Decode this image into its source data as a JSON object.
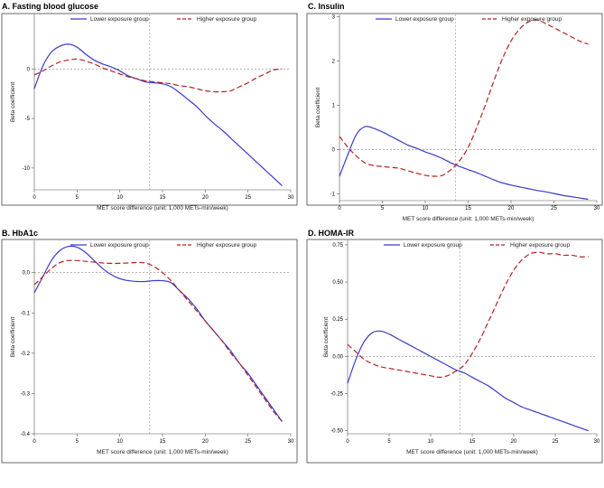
{
  "chart_data": [
    {
      "id": "A",
      "type": "line",
      "title": "A. Fasting blood glucose",
      "xlabel": "MET score difference (unit: 1,000 METs-min/week)",
      "ylabel": "Beta coefficient",
      "xlim": [
        0,
        30
      ],
      "ylim": [
        -12.2,
        5.5
      ],
      "xticks": [
        0,
        5,
        10,
        15,
        20,
        25,
        30
      ],
      "yticks": [
        -10,
        -5,
        0
      ],
      "yticklabels": [
        "-10",
        "-5",
        "0"
      ],
      "ref_y": 0,
      "ref_x": 13.5,
      "series": [
        {
          "name": "Lower exposure group",
          "style": "solid",
          "color": "#3a3acc",
          "x": [
            0,
            1,
            2,
            3,
            4,
            5,
            6,
            7,
            8,
            9,
            10,
            11,
            12,
            13,
            14,
            15,
            16,
            17,
            18,
            19,
            20,
            21,
            22,
            23,
            24,
            25,
            26,
            27,
            28,
            29
          ],
          "y": [
            -2.0,
            0.3,
            1.7,
            2.3,
            2.5,
            2.2,
            1.5,
            0.9,
            0.5,
            0.2,
            -0.2,
            -0.7,
            -1.0,
            -1.3,
            -1.4,
            -1.5,
            -1.8,
            -2.4,
            -3.1,
            -3.8,
            -4.7,
            -5.5,
            -6.2,
            -7.0,
            -7.8,
            -8.6,
            -9.4,
            -10.2,
            -11.0,
            -11.8
          ]
        },
        {
          "name": "Higher exposure group",
          "style": "dashed",
          "color": "#b22222",
          "x": [
            0,
            1,
            2,
            3,
            4,
            5,
            6,
            7,
            8,
            9,
            10,
            11,
            12,
            13,
            14,
            15,
            16,
            17,
            18,
            19,
            20,
            21,
            22,
            23,
            24,
            25,
            26,
            27,
            28,
            29
          ],
          "y": [
            -0.6,
            -0.2,
            0.3,
            0.7,
            0.9,
            1.0,
            0.8,
            0.5,
            0.1,
            -0.2,
            -0.5,
            -0.8,
            -1.0,
            -1.2,
            -1.3,
            -1.4,
            -1.5,
            -1.7,
            -1.8,
            -2.0,
            -2.2,
            -2.3,
            -2.3,
            -2.2,
            -1.8,
            -1.4,
            -0.9,
            -0.5,
            -0.1,
            0.0
          ]
        }
      ]
    },
    {
      "id": "B",
      "type": "line",
      "title": "B. HbA1c",
      "xlabel": "MET score difference (unit: 1,000 METs-min/week)",
      "ylabel": "Beta coefficient",
      "xlim": [
        0,
        30
      ],
      "ylim": [
        -0.4,
        0.08
      ],
      "xticks": [
        0,
        5,
        10,
        15,
        20,
        25,
        30
      ],
      "yticks": [
        -0.4,
        -0.3,
        -0.2,
        -0.1,
        0.0
      ],
      "yticklabels": [
        "-0.4",
        "-0.3",
        "-0.2",
        "-0.1",
        "0.0"
      ],
      "ref_y": 0,
      "ref_x": 13.5,
      "series": [
        {
          "name": "Lower exposure group",
          "style": "solid",
          "color": "#3a3acc",
          "x": [
            0,
            1,
            2,
            3,
            4,
            5,
            6,
            7,
            8,
            9,
            10,
            11,
            12,
            13,
            14,
            15,
            16,
            17,
            18,
            19,
            20,
            21,
            22,
            23,
            24,
            25,
            26,
            27,
            28,
            29
          ],
          "y": [
            -0.05,
            -0.01,
            0.03,
            0.055,
            0.065,
            0.063,
            0.05,
            0.03,
            0.01,
            -0.005,
            -0.015,
            -0.02,
            -0.022,
            -0.022,
            -0.02,
            -0.02,
            -0.025,
            -0.045,
            -0.065,
            -0.09,
            -0.12,
            -0.145,
            -0.17,
            -0.195,
            -0.225,
            -0.25,
            -0.28,
            -0.31,
            -0.34,
            -0.37
          ]
        },
        {
          "name": "Higher exposure group",
          "style": "dashed",
          "color": "#b22222",
          "x": [
            0,
            1,
            2,
            3,
            4,
            5,
            6,
            7,
            8,
            9,
            10,
            11,
            12,
            13,
            14,
            15,
            16,
            17,
            18,
            19,
            20,
            21,
            22,
            23,
            24,
            25,
            26,
            27,
            28,
            29
          ],
          "y": [
            -0.03,
            -0.01,
            0.01,
            0.025,
            0.03,
            0.03,
            0.028,
            0.026,
            0.024,
            0.023,
            0.023,
            0.024,
            0.025,
            0.024,
            0.015,
            0.0,
            -0.02,
            -0.045,
            -0.07,
            -0.095,
            -0.12,
            -0.145,
            -0.17,
            -0.2,
            -0.225,
            -0.255,
            -0.285,
            -0.315,
            -0.345,
            -0.37
          ]
        }
      ]
    },
    {
      "id": "C",
      "type": "line",
      "title": "C. Insulin",
      "xlabel": "MET score difference (unit: 1,000 METs-min/week)",
      "ylabel": "Beta coefficient",
      "xlim": [
        0,
        30
      ],
      "ylim": [
        -1.15,
        3.05
      ],
      "xticks": [
        0,
        5,
        10,
        15,
        20,
        25,
        30
      ],
      "yticks": [
        -1,
        0,
        1,
        2,
        3
      ],
      "yticklabels": [
        "-1",
        "0",
        "1",
        "2",
        "3"
      ],
      "ref_y": 0,
      "ref_x": 13.5,
      "series": [
        {
          "name": "Lower exposure group",
          "style": "solid",
          "color": "#3a3acc",
          "x": [
            0,
            1,
            2,
            3,
            4,
            5,
            6,
            7,
            8,
            9,
            10,
            11,
            12,
            13,
            14,
            15,
            16,
            17,
            18,
            19,
            20,
            21,
            22,
            23,
            24,
            25,
            26,
            27,
            28,
            29
          ],
          "y": [
            -0.6,
            -0.1,
            0.35,
            0.52,
            0.48,
            0.4,
            0.3,
            0.2,
            0.1,
            0.03,
            -0.05,
            -0.12,
            -0.2,
            -0.3,
            -0.38,
            -0.45,
            -0.52,
            -0.6,
            -0.68,
            -0.75,
            -0.8,
            -0.84,
            -0.88,
            -0.92,
            -0.95,
            -0.99,
            -1.03,
            -1.06,
            -1.09,
            -1.12
          ]
        },
        {
          "name": "Higher exposure group",
          "style": "dashed",
          "color": "#b22222",
          "x": [
            0,
            1,
            2,
            3,
            4,
            5,
            6,
            7,
            8,
            9,
            10,
            11,
            12,
            13,
            14,
            15,
            16,
            17,
            18,
            19,
            20,
            21,
            22,
            23,
            24,
            25,
            26,
            27,
            28,
            29
          ],
          "y": [
            0.3,
            0.05,
            -0.15,
            -0.3,
            -0.36,
            -0.38,
            -0.4,
            -0.42,
            -0.48,
            -0.53,
            -0.58,
            -0.6,
            -0.58,
            -0.45,
            -0.25,
            0.05,
            0.5,
            1.0,
            1.55,
            2.05,
            2.45,
            2.72,
            2.88,
            2.93,
            2.85,
            2.75,
            2.65,
            2.55,
            2.45,
            2.38
          ]
        }
      ]
    },
    {
      "id": "D",
      "type": "line",
      "title": "D. HOMA-IR",
      "xlabel": "MET score difference (unit: 1,000 METs-min/week)",
      "ylabel": "Beta coefficient",
      "xlim": [
        0,
        30
      ],
      "ylim": [
        -0.52,
        0.78
      ],
      "xticks": [
        0,
        5,
        10,
        15,
        20,
        25,
        30
      ],
      "yticks": [
        -0.5,
        -0.25,
        0.0,
        0.25,
        0.5,
        0.75
      ],
      "yticklabels": [
        "-0.50",
        "-0.25",
        "0.00",
        "0.25",
        "0.50",
        "0.75"
      ],
      "ref_y": 0,
      "ref_x": 13.5,
      "series": [
        {
          "name": "Lower exposure group",
          "style": "solid",
          "color": "#3a3acc",
          "x": [
            0,
            1,
            2,
            3,
            4,
            5,
            6,
            7,
            8,
            9,
            10,
            11,
            12,
            13,
            14,
            15,
            16,
            17,
            18,
            19,
            20,
            21,
            22,
            23,
            24,
            25,
            26,
            27,
            28,
            29
          ],
          "y": [
            -0.18,
            -0.02,
            0.1,
            0.16,
            0.17,
            0.15,
            0.12,
            0.09,
            0.06,
            0.03,
            0.0,
            -0.03,
            -0.06,
            -0.09,
            -0.11,
            -0.14,
            -0.17,
            -0.2,
            -0.24,
            -0.28,
            -0.31,
            -0.34,
            -0.36,
            -0.38,
            -0.4,
            -0.42,
            -0.44,
            -0.46,
            -0.48,
            -0.5
          ]
        },
        {
          "name": "Higher exposure group",
          "style": "dashed",
          "color": "#b22222",
          "x": [
            0,
            1,
            2,
            3,
            4,
            5,
            6,
            7,
            8,
            9,
            10,
            11,
            12,
            13,
            14,
            15,
            16,
            17,
            18,
            19,
            20,
            21,
            22,
            23,
            24,
            25,
            26,
            27,
            28,
            29
          ],
          "y": [
            0.08,
            0.03,
            -0.02,
            -0.05,
            -0.07,
            -0.08,
            -0.09,
            -0.1,
            -0.11,
            -0.12,
            -0.13,
            -0.14,
            -0.13,
            -0.1,
            -0.06,
            0.02,
            0.12,
            0.24,
            0.36,
            0.48,
            0.58,
            0.65,
            0.69,
            0.7,
            0.69,
            0.69,
            0.68,
            0.68,
            0.67,
            0.67
          ]
        }
      ]
    }
  ]
}
